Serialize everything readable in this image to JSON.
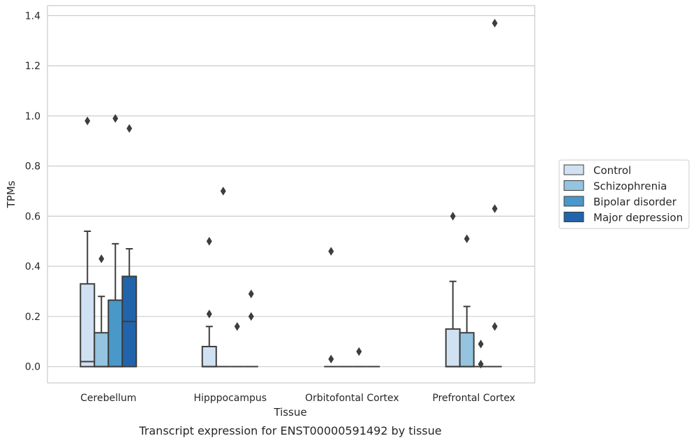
{
  "chart_data": {
    "type": "box",
    "caption": "Transcript expression for ENST00000591492 by tissue",
    "xlabel": "Tissue",
    "ylabel": "TPMs",
    "ylim": [
      -0.065,
      1.44
    ],
    "yticks": [
      0.0,
      0.2,
      0.4,
      0.6,
      0.8,
      1.0,
      1.2,
      1.4
    ],
    "ytick_labels": [
      "0.0",
      "0.2",
      "0.4",
      "0.6",
      "0.8",
      "1.0",
      "1.2",
      "1.4"
    ],
    "grid": true,
    "legend_position": "right",
    "categories": [
      "Cerebellum",
      "Hipppocampus",
      "Orbitofontal Cortex",
      "Prefrontal Cortex"
    ],
    "series": [
      {
        "name": "Control",
        "color": "#d0e1f2",
        "boxes": [
          {
            "q1": 0.0,
            "median": 0.02,
            "q3": 0.33,
            "whisker_low": 0.0,
            "whisker_high": 0.54,
            "outliers": [
              0.98
            ]
          },
          {
            "q1": 0.0,
            "median": 0.0,
            "q3": 0.08,
            "whisker_low": 0.0,
            "whisker_high": 0.16,
            "outliers": [
              0.21,
              0.5
            ]
          },
          {
            "q1": 0.0,
            "median": 0.0,
            "q3": 0.0,
            "whisker_low": 0.0,
            "whisker_high": 0.0,
            "outliers": [
              0.46,
              0.03
            ]
          },
          {
            "q1": 0.0,
            "median": 0.0,
            "q3": 0.15,
            "whisker_low": 0.0,
            "whisker_high": 0.34,
            "outliers": [
              0.6
            ]
          }
        ]
      },
      {
        "name": "Schizophrenia",
        "color": "#94c4df",
        "boxes": [
          {
            "q1": 0.0,
            "median": 0.0,
            "q3": 0.135,
            "whisker_low": 0.0,
            "whisker_high": 0.28,
            "outliers": [
              0.43
            ]
          },
          {
            "q1": 0.0,
            "median": 0.0,
            "q3": 0.0,
            "whisker_low": 0.0,
            "whisker_high": 0.0,
            "outliers": [
              0.7
            ]
          },
          {
            "q1": 0.0,
            "median": 0.0,
            "q3": 0.0,
            "whisker_low": 0.0,
            "whisker_high": 0.0,
            "outliers": []
          },
          {
            "q1": 0.0,
            "median": 0.0,
            "q3": 0.135,
            "whisker_low": 0.0,
            "whisker_high": 0.24,
            "outliers": [
              0.51
            ]
          }
        ]
      },
      {
        "name": "Bipolar disorder",
        "color": "#4a98c9",
        "boxes": [
          {
            "q1": 0.0,
            "median": 0.0,
            "q3": 0.265,
            "whisker_low": 0.0,
            "whisker_high": 0.49,
            "outliers": [
              0.99
            ]
          },
          {
            "q1": 0.0,
            "median": 0.0,
            "q3": 0.0,
            "whisker_low": 0.0,
            "whisker_high": 0.0,
            "outliers": [
              0.16
            ]
          },
          {
            "q1": 0.0,
            "median": 0.0,
            "q3": 0.0,
            "whisker_low": 0.0,
            "whisker_high": 0.0,
            "outliers": [
              0.06
            ]
          },
          {
            "q1": 0.0,
            "median": 0.0,
            "q3": 0.0,
            "whisker_low": 0.0,
            "whisker_high": 0.0,
            "outliers": [
              0.09,
              0.01
            ]
          }
        ]
      },
      {
        "name": "Major depression",
        "color": "#2164ab",
        "boxes": [
          {
            "q1": 0.0,
            "median": 0.18,
            "q3": 0.36,
            "whisker_low": 0.0,
            "whisker_high": 0.47,
            "outliers": [
              0.95
            ]
          },
          {
            "q1": 0.0,
            "median": 0.0,
            "q3": 0.0,
            "whisker_low": 0.0,
            "whisker_high": 0.0,
            "outliers": [
              0.29,
              0.2
            ]
          },
          {
            "q1": 0.0,
            "median": 0.0,
            "q3": 0.0,
            "whisker_low": 0.0,
            "whisker_high": 0.0,
            "outliers": []
          },
          {
            "q1": 0.0,
            "median": 0.0,
            "q3": 0.0,
            "whisker_low": 0.0,
            "whisker_high": 0.0,
            "outliers": [
              1.37,
              0.63,
              0.16
            ]
          }
        ]
      }
    ]
  }
}
